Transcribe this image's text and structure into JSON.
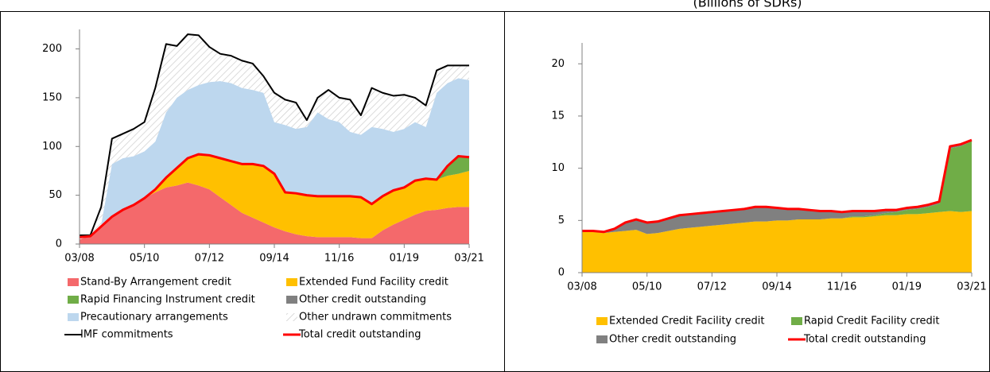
{
  "header": "(Billions of SDRs)",
  "chart_data": [
    {
      "type": "stacked_area",
      "categories": [
        "03/08",
        null,
        null,
        null,
        null,
        null,
        "05/10",
        null,
        null,
        null,
        null,
        null,
        "07/12",
        null,
        null,
        null,
        null,
        null,
        "09/14",
        null,
        null,
        null,
        null,
        null,
        "11/16",
        null,
        null,
        null,
        null,
        null,
        "01/19",
        null,
        null,
        null,
        null,
        null,
        "03/21"
      ],
      "ylim": [
        0,
        220
      ],
      "yticks": [
        0,
        50,
        100,
        150,
        200
      ],
      "legend_columns": 2,
      "series": [
        {
          "name": "Stand-By Arrangement credit",
          "kind": "area",
          "color": "#f4696b",
          "values": [
            5,
            8,
            18,
            28,
            35,
            40,
            47,
            53,
            58,
            60,
            63,
            60,
            56,
            48,
            40,
            32,
            27,
            22,
            17,
            13,
            10,
            8,
            7,
            7,
            7,
            7,
            6,
            6,
            14,
            20,
            25,
            30,
            34,
            35,
            37,
            38,
            38
          ]
        },
        {
          "name": "Extended Fund Facility credit",
          "kind": "area",
          "color": "#ffc000",
          "values": [
            0,
            0,
            0,
            0,
            0,
            0,
            0,
            3,
            10,
            18,
            25,
            32,
            35,
            40,
            45,
            50,
            55,
            58,
            55,
            40,
            42,
            42,
            42,
            42,
            42,
            42,
            42,
            35,
            35,
            35,
            33,
            35,
            33,
            31,
            33,
            34,
            37
          ]
        },
        {
          "name": "Rapid Financing Instrument credit",
          "kind": "area",
          "color": "#70ad47",
          "values": [
            0,
            0,
            0,
            0,
            0,
            0,
            0,
            0,
            0,
            0,
            0,
            0,
            0,
            0,
            0,
            0,
            0,
            0,
            0,
            0,
            0,
            0,
            0,
            0,
            0,
            0,
            0,
            0,
            0,
            0,
            0,
            0,
            0,
            0,
            10,
            17,
            13
          ]
        },
        {
          "name": "Other credit outstanding",
          "kind": "area",
          "color": "#808080",
          "values": [
            0,
            0,
            0,
            0,
            0,
            0,
            0,
            0,
            0,
            0,
            0,
            0,
            0,
            0,
            0,
            0,
            0,
            0,
            0,
            0,
            0,
            0,
            0,
            0,
            0,
            0,
            0,
            0,
            0,
            0,
            0,
            0,
            0,
            0,
            0,
            1,
            1
          ]
        },
        {
          "name": "Precautionary arrangements",
          "kind": "area",
          "color": "#bdd7ee",
          "values": [
            0,
            0,
            2,
            54,
            53,
            50,
            48,
            49,
            67,
            72,
            70,
            71,
            75,
            79,
            80,
            78,
            76,
            75,
            53,
            69,
            66,
            70,
            86,
            79,
            76,
            66,
            64,
            79,
            69,
            60,
            60,
            60,
            53,
            89,
            85,
            80,
            79
          ]
        },
        {
          "name": "Other undrawn commitments",
          "kind": "area",
          "pattern": "hatch",
          "color": "#d9d9d9",
          "values": [
            2,
            1,
            18,
            26,
            25,
            28,
            30,
            55,
            70,
            53,
            57,
            51,
            36,
            28,
            28,
            28,
            27,
            17,
            30,
            26,
            27,
            7,
            15,
            30,
            25,
            33,
            20,
            40,
            37,
            37,
            35,
            25,
            22,
            23,
            18,
            13,
            15
          ]
        },
        {
          "name": "IMF commitments",
          "kind": "line",
          "color": "#000000",
          "values": [
            9,
            9,
            38,
            108,
            113,
            118,
            125,
            160,
            205,
            203,
            215,
            214,
            202,
            195,
            193,
            188,
            185,
            172,
            155,
            148,
            145,
            127,
            150,
            158,
            150,
            148,
            132,
            160,
            155,
            152,
            153,
            150,
            142,
            178,
            183,
            183,
            183
          ]
        },
        {
          "name": "Total credit outstanding",
          "kind": "line",
          "color": "#ff0000",
          "values": [
            7,
            8,
            18,
            28,
            35,
            40,
            47,
            56,
            68,
            78,
            88,
            92,
            91,
            88,
            85,
            82,
            82,
            80,
            72,
            53,
            52,
            50,
            49,
            49,
            49,
            49,
            48,
            41,
            49,
            55,
            58,
            65,
            67,
            66,
            80,
            90,
            89
          ]
        }
      ]
    },
    {
      "type": "stacked_area",
      "categories": [
        "03/08",
        null,
        null,
        null,
        null,
        null,
        "05/10",
        null,
        null,
        null,
        null,
        null,
        "07/12",
        null,
        null,
        null,
        null,
        null,
        "09/14",
        null,
        null,
        null,
        null,
        null,
        "11/16",
        null,
        null,
        null,
        null,
        null,
        "01/19",
        null,
        null,
        null,
        null,
        null,
        "03/21"
      ],
      "ylim": [
        0,
        22
      ],
      "yticks": [
        0,
        5,
        10,
        15,
        20
      ],
      "legend_columns": 2,
      "series": [
        {
          "name": "Extended Credit Facility credit",
          "kind": "area",
          "color": "#ffc000",
          "values": [
            3.9,
            3.9,
            3.8,
            3.9,
            4.0,
            4.1,
            3.7,
            3.8,
            4.0,
            4.2,
            4.3,
            4.4,
            4.5,
            4.6,
            4.7,
            4.8,
            4.9,
            4.9,
            5.0,
            5.0,
            5.1,
            5.1,
            5.1,
            5.2,
            5.2,
            5.3,
            5.3,
            5.4,
            5.5,
            5.5,
            5.6,
            5.6,
            5.7,
            5.8,
            5.9,
            5.8,
            5.9
          ]
        },
        {
          "name": "Rapid Credit Facility credit",
          "kind": "area",
          "color": "#70ad47",
          "values": [
            0,
            0,
            0,
            0,
            0,
            0,
            0,
            0,
            0,
            0,
            0,
            0,
            0,
            0,
            0,
            0,
            0,
            0,
            0,
            0,
            0,
            0,
            0,
            0,
            0,
            0.1,
            0.1,
            0.1,
            0.2,
            0.3,
            0.4,
            0.5,
            0.6,
            0.8,
            6.0,
            6.3,
            6.7
          ]
        },
        {
          "name": "Other credit outstanding",
          "kind": "area",
          "color": "#808080",
          "values": [
            0.1,
            0.1,
            0.1,
            0.3,
            0.8,
            1.0,
            1.1,
            1.1,
            1.2,
            1.3,
            1.3,
            1.3,
            1.3,
            1.3,
            1.3,
            1.3,
            1.4,
            1.4,
            1.2,
            1.1,
            1.0,
            0.9,
            0.8,
            0.7,
            0.6,
            0.5,
            0.5,
            0.4,
            0.3,
            0.2,
            0.2,
            0.2,
            0.2,
            0.2,
            0.2,
            0.2,
            0.1
          ]
        },
        {
          "name": "Total credit outstanding",
          "kind": "line",
          "color": "#ff0000",
          "values": [
            4.0,
            4.0,
            3.9,
            4.2,
            4.8,
            5.1,
            4.8,
            4.9,
            5.2,
            5.5,
            5.6,
            5.7,
            5.8,
            5.9,
            6.0,
            6.1,
            6.3,
            6.3,
            6.2,
            6.1,
            6.1,
            6.0,
            5.9,
            5.9,
            5.8,
            5.9,
            5.9,
            5.9,
            6.0,
            6.0,
            6.2,
            6.3,
            6.5,
            6.8,
            12.1,
            12.3,
            12.7
          ]
        }
      ]
    }
  ]
}
